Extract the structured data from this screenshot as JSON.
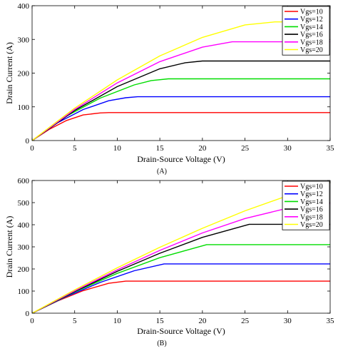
{
  "chart_data": [
    {
      "type": "line",
      "panel_label": "(A)",
      "xlabel": "Drain-Source Voltage (V)",
      "ylabel": "Drain Current (A)",
      "xlim": [
        0,
        35
      ],
      "ylim": [
        0,
        400
      ],
      "x_ticks": [
        0,
        5,
        10,
        15,
        20,
        25,
        30,
        35
      ],
      "y_ticks": [
        0,
        100,
        200,
        300,
        400
      ],
      "grid": false,
      "legend_position": "top-right",
      "series": [
        {
          "name": "Vgs=10",
          "color": "#ff0000",
          "vsat": 9.0,
          "isat": 83,
          "x": [
            0,
            2,
            4,
            6,
            8,
            9,
            15,
            20,
            25,
            30,
            35
          ],
          "y": [
            0,
            33,
            59,
            76,
            82,
            83,
            83,
            83,
            83,
            83,
            83
          ]
        },
        {
          "name": "Vgs=12",
          "color": "#0000ff",
          "vsat": 12.4,
          "isat": 130,
          "x": [
            0,
            3,
            6,
            9,
            11,
            12.4,
            15,
            20,
            25,
            30,
            35
          ],
          "y": [
            0,
            53,
            92,
            118,
            127,
            130,
            130,
            130,
            130,
            130,
            130
          ]
        },
        {
          "name": "Vgs=14",
          "color": "#00dd00",
          "vsat": 16.0,
          "isat": 183,
          "x": [
            0,
            4,
            8,
            12,
            14,
            16,
            20,
            25,
            30,
            35
          ],
          "y": [
            0,
            72,
            126,
            165,
            178,
            183,
            183,
            183,
            183,
            183
          ]
        },
        {
          "name": "Vgs=16",
          "color": "#000000",
          "vsat": 20.0,
          "isat": 236,
          "x": [
            0,
            5,
            10,
            15,
            18,
            20,
            25,
            30,
            35
          ],
          "y": [
            0,
            89,
            160,
            213,
            231,
            236,
            236,
            236,
            236
          ]
        },
        {
          "name": "Vgs=18",
          "color": "#ff00ff",
          "vsat": 23.5,
          "isat": 293,
          "x": [
            0,
            5,
            10,
            15,
            20,
            23.5,
            25,
            30,
            35
          ],
          "y": [
            0,
            92,
            171,
            234,
            277,
            293,
            293,
            293,
            293
          ]
        },
        {
          "name": "Vgs=20",
          "color": "#ffff00",
          "vsat": 28.5,
          "isat": 352,
          "x": [
            0,
            5,
            10,
            15,
            20,
            25,
            28.5,
            30,
            35
          ],
          "y": [
            0,
            96,
            180,
            251,
            306,
            343,
            352,
            352,
            352
          ]
        }
      ]
    },
    {
      "type": "line",
      "panel_label": "(B)",
      "xlabel": "Drain-Source Voltage (V)",
      "ylabel": "Drain Current (A)",
      "xlim": [
        0,
        35
      ],
      "ylim": [
        0,
        600
      ],
      "x_ticks": [
        0,
        5,
        10,
        15,
        20,
        25,
        30,
        35
      ],
      "y_ticks": [
        0,
        100,
        200,
        300,
        400,
        500,
        600
      ],
      "grid": false,
      "legend_position": "top-right",
      "series": [
        {
          "name": "Vgs=10",
          "color": "#ff0000",
          "vsat": 11.0,
          "isat": 145,
          "x": [
            0,
            3,
            6,
            9,
            11,
            15,
            20,
            25,
            30,
            35
          ],
          "y": [
            0,
            55,
            102,
            135,
            145,
            145,
            145,
            145,
            145,
            145
          ]
        },
        {
          "name": "Vgs=12",
          "color": "#0000ff",
          "vsat": 15.5,
          "isat": 223,
          "x": [
            0,
            4,
            8,
            12,
            15.5,
            20,
            25,
            30,
            35
          ],
          "y": [
            0,
            75,
            139,
            192,
            223,
            223,
            223,
            223,
            223
          ]
        },
        {
          "name": "Vgs=14",
          "color": "#00dd00",
          "vsat": 20.5,
          "isat": 310,
          "x": [
            0,
            5,
            10,
            15,
            20.5,
            25,
            30,
            35
          ],
          "y": [
            0,
            96,
            180,
            251,
            310,
            310,
            310,
            310
          ]
        },
        {
          "name": "Vgs=16",
          "color": "#000000",
          "vsat": 25.5,
          "isat": 402,
          "x": [
            0,
            5,
            10,
            15,
            20,
            25.5,
            30,
            35
          ],
          "y": [
            0,
            98,
            189,
            271,
            343,
            402,
            402,
            402
          ]
        },
        {
          "name": "Vgs=18",
          "color": "#ff00ff",
          "vsat": 33.5,
          "isat": 495,
          "x": [
            0,
            5,
            10,
            15,
            20,
            25,
            30,
            33.5,
            35
          ],
          "y": [
            0,
            101,
            196,
            284,
            363,
            428,
            475,
            495,
            495
          ]
        },
        {
          "name": "Vgs=20",
          "color": "#ffff00",
          "vsat": 35.0,
          "isat": 590,
          "x": [
            0,
            5,
            10,
            15,
            20,
            25,
            30,
            35
          ],
          "y": [
            0,
            105,
            205,
            298,
            384,
            463,
            531,
            590
          ]
        }
      ]
    }
  ]
}
